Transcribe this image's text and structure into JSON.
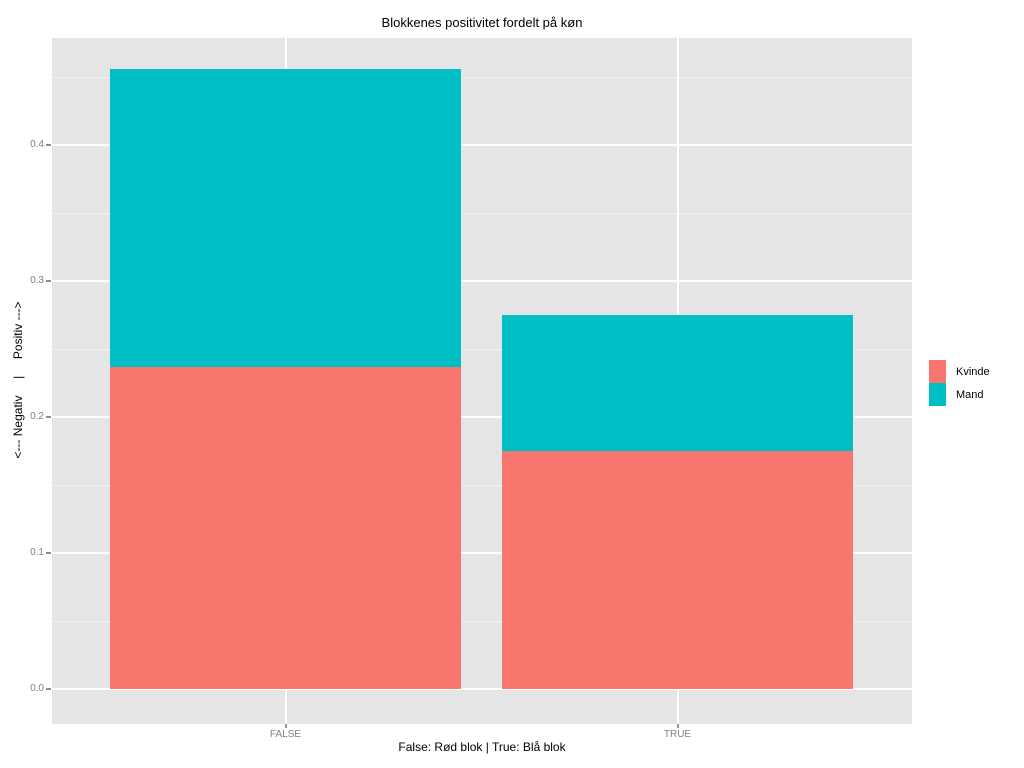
{
  "title": "Blokkenes positivitet fordelt på køn",
  "axes": {
    "y_label": "<--- Negativ     |     Positiv --->",
    "x_label": "False: Rød blok | True: Blå blok",
    "y_ticks": [
      {
        "value": 0.0,
        "label": "0.0"
      },
      {
        "value": 0.1,
        "label": "0.1"
      },
      {
        "value": 0.2,
        "label": "0.2"
      },
      {
        "value": 0.3,
        "label": "0.3"
      },
      {
        "value": 0.4,
        "label": "0.4"
      }
    ],
    "x_ticks": [
      "FALSE",
      "TRUE"
    ]
  },
  "legend": {
    "items": [
      {
        "label": "Kvinde",
        "color": "#F8766D"
      },
      {
        "label": "Mand",
        "color": "#00BFC4"
      }
    ]
  },
  "colors": {
    "kvinde": "#F8766D",
    "mand": "#00BFC4",
    "panel_background": "#E5E5E5",
    "grid_major": "#FFFFFF",
    "tick_text": "#7F7F7F"
  },
  "chart_data": {
    "type": "bar",
    "stacked": true,
    "categories": [
      "FALSE",
      "TRUE"
    ],
    "series": [
      {
        "name": "Kvinde",
        "color": "#F8766D",
        "values": [
          0.237,
          0.175
        ]
      },
      {
        "name": "Mand",
        "color": "#00BFC4",
        "values": [
          0.219,
          0.1
        ]
      }
    ],
    "totals": [
      0.456,
      0.275
    ],
    "title": "Blokkenes positivitet fordelt på køn",
    "xlabel": "False: Rød blok | True: Blå blok",
    "ylabel": "<--- Negativ | Positiv --->",
    "ylim": [
      -0.026,
      0.479
    ],
    "y_major_ticks": [
      0.0,
      0.1,
      0.2,
      0.3,
      0.4
    ],
    "y_minor_ticks": [
      0.05,
      0.15,
      0.25,
      0.35,
      0.45
    ],
    "grid": true,
    "legend_position": "right",
    "legend_title": ""
  }
}
